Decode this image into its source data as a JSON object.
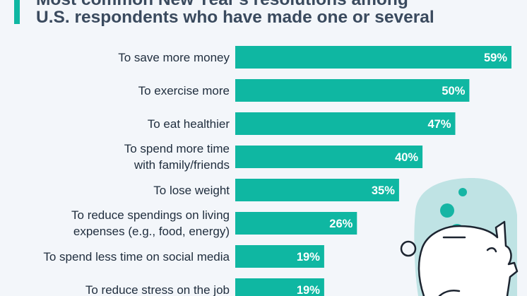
{
  "chart_data": {
    "type": "bar",
    "orientation": "horizontal",
    "title_lines": [
      "Most common New Year's resolutions among",
      "U.S. respondents who have made one or several"
    ],
    "categories": [
      [
        "To save more money"
      ],
      [
        "To exercise more"
      ],
      [
        "To eat healthier"
      ],
      [
        "To spend more time",
        "with family/friends"
      ],
      [
        "To lose weight"
      ],
      [
        "To reduce spendings on living",
        "expenses (e.g., food, energy)"
      ],
      [
        "To spend less time on social media"
      ],
      [
        "To reduce stress on the job"
      ]
    ],
    "values": [
      59,
      50,
      47,
      40,
      35,
      26,
      19,
      19
    ],
    "value_labels": [
      "59%",
      "50%",
      "47%",
      "40%",
      "35%",
      "26%",
      "19%",
      "19%"
    ],
    "unit": "%",
    "xlim": [
      0,
      100
    ],
    "grid": false,
    "legend": "none"
  },
  "colors": {
    "bar": "#0fb7a2",
    "label": "#1f2d3d",
    "value_label": "#ffffff",
    "title": "#3a4a5e",
    "background": "#f3f6fa",
    "illustration_blob": "#bfe3e4",
    "illustration_accent": "#16b5a4",
    "illustration_outline": "#1c2430"
  },
  "icons": [
    "piggy-bank-icon",
    "coin-icon"
  ]
}
